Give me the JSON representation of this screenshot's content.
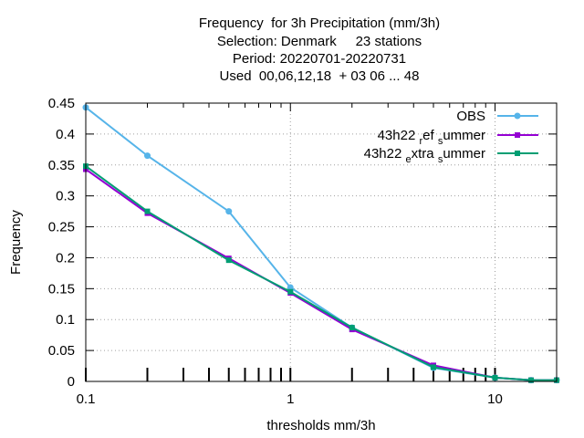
{
  "title_lines": [
    "Frequency  for 3h Precipitation (mm/3h)",
    "Selection: Denmark     23 stations",
    "Period: 20220701-20220731",
    "Used  00,06,12,18  + 03 06 ... 48"
  ],
  "chart_data": {
    "type": "line",
    "xlabel": "thresholds mm/3h",
    "ylabel": "Frequency",
    "xscale": "log",
    "xlim": [
      0.1,
      20
    ],
    "ylim": [
      0,
      0.45
    ],
    "xticks": [
      {
        "value": 0.1,
        "label": "0.1"
      },
      {
        "value": 1,
        "label": "1"
      },
      {
        "value": 10,
        "label": "10"
      }
    ],
    "yticks": [
      {
        "value": 0,
        "label": "0"
      },
      {
        "value": 0.05,
        "label": "0.05"
      },
      {
        "value": 0.1,
        "label": "0.1"
      },
      {
        "value": 0.15,
        "label": "0.15"
      },
      {
        "value": 0.2,
        "label": "0.2"
      },
      {
        "value": 0.25,
        "label": "0.25"
      },
      {
        "value": 0.3,
        "label": "0.3"
      },
      {
        "value": 0.35,
        "label": "0.35"
      },
      {
        "value": 0.4,
        "label": "0.4"
      },
      {
        "value": 0.45,
        "label": "0.45"
      }
    ],
    "grid": true,
    "legend_position": "top-right",
    "x": [
      0.1,
      0.2,
      0.5,
      1,
      2,
      5,
      10,
      15,
      20
    ],
    "series": [
      {
        "name": "OBS",
        "color": "#56b4e9",
        "values": [
          0.443,
          0.365,
          0.275,
          0.152,
          0.087,
          0.022,
          0.006,
          0.002,
          0.002
        ]
      },
      {
        "name": "43h22 ref summer",
        "legend_parts": [
          "43h22 ",
          "r",
          "ef ",
          "s",
          "ummer"
        ],
        "color": "#9400d3",
        "values": [
          0.343,
          0.272,
          0.199,
          0.143,
          0.084,
          0.026,
          0.006,
          0.002,
          0.002
        ]
      },
      {
        "name": "43h22 extra summer",
        "legend_parts": [
          "43h22 ",
          "e",
          "xtra ",
          "s",
          "ummer"
        ],
        "color": "#009e73",
        "values": [
          0.348,
          0.275,
          0.196,
          0.145,
          0.087,
          0.023,
          0.006,
          0.002,
          0.002
        ]
      }
    ]
  }
}
